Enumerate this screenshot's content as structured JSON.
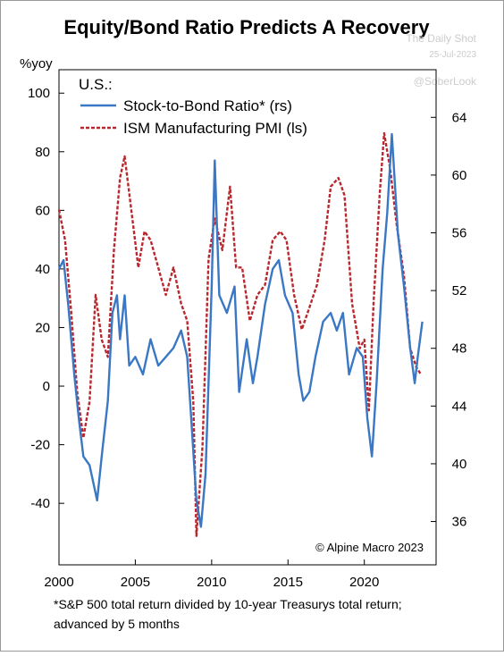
{
  "chart_data": {
    "type": "line",
    "title": "Equity/Bond Ratio Predicts A Recovery",
    "watermarks": [
      "The Daily Shot",
      "25-Jul-2023",
      "@SoberLook"
    ],
    "y_label": "%yoy",
    "legend_title": "U.S.:",
    "credit": "© Alpine Macro 2023",
    "footnote": [
      "*S&P 500 total return divided by 10-year Treasurys total return;",
      "advanced by 5 months"
    ],
    "xlim": [
      2000,
      2024.7
    ],
    "xticks": [
      2000,
      2005,
      2010,
      2015,
      2020
    ],
    "ylim": [
      -61,
      108
    ],
    "yticks": [
      -40,
      -20,
      0,
      20,
      40,
      60,
      80,
      100
    ],
    "y2lim": [
      33,
      67.3
    ],
    "y2ticks": [
      36,
      40,
      44,
      48,
      52,
      56,
      60,
      64
    ],
    "series": [
      {
        "name": "Stock-to-Bond Ratio* (rs)",
        "color": "#3a77c4",
        "dash": false,
        "x": [
          2000,
          2000.3,
          2000.6,
          2001,
          2001.3,
          2001.6,
          2002,
          2002.5,
          2002.8,
          2003.2,
          2003.5,
          2003.8,
          2004,
          2004.3,
          2004.6,
          2005,
          2005.5,
          2006,
          2006.5,
          2007,
          2007.5,
          2008,
          2008.4,
          2008.7,
          2009,
          2009.3,
          2009.6,
          2010,
          2010.2,
          2010.5,
          2011,
          2011.5,
          2011.8,
          2012.3,
          2012.7,
          2013,
          2013.5,
          2014,
          2014.4,
          2014.8,
          2015.3,
          2015.7,
          2016,
          2016.4,
          2016.8,
          2017.3,
          2017.8,
          2018.2,
          2018.6,
          2019,
          2019.5,
          2019.9,
          2020.2,
          2020.5,
          2020.8,
          2021.2,
          2021.5,
          2021.8,
          2022.2,
          2022.6,
          2023,
          2023.3,
          2023.5,
          2023.8
        ],
        "values": [
          40,
          43,
          28,
          4,
          -11,
          -24,
          -27,
          -39,
          -24,
          -5,
          25,
          31,
          16,
          31,
          7,
          10,
          4,
          16,
          7,
          10,
          13,
          19,
          10,
          -14,
          -39,
          -48,
          -30,
          34,
          77,
          31,
          25,
          34,
          -2,
          16,
          1,
          10,
          28,
          40,
          43,
          31,
          25,
          4,
          -5,
          -2,
          10,
          22,
          25,
          19,
          25,
          4,
          13,
          10,
          -11,
          -24,
          1,
          40,
          59,
          86,
          52,
          34,
          13,
          1,
          10,
          22
        ]
      },
      {
        "name": "ISM Manufacturing PMI (ls)",
        "color": "#b8282e",
        "dash": true,
        "axis": "y2",
        "x": [
          2000,
          2000.4,
          2000.8,
          2001.2,
          2001.6,
          2002,
          2002.4,
          2002.8,
          2003.2,
          2003.6,
          2004,
          2004.3,
          2004.7,
          2005.2,
          2005.6,
          2006,
          2006.5,
          2007,
          2007.5,
          2008,
          2008.4,
          2008.8,
          2009,
          2009.4,
          2009.8,
          2010.2,
          2010.7,
          2011.2,
          2011.6,
          2012,
          2012.5,
          2013,
          2013.5,
          2014,
          2014.5,
          2014.9,
          2015.4,
          2015.9,
          2016.3,
          2016.9,
          2017.4,
          2017.8,
          2018.3,
          2018.7,
          2019.2,
          2019.7,
          2020,
          2020.3,
          2020.6,
          2021,
          2021.3,
          2021.7,
          2022.1,
          2022.6,
          2023,
          2023.4,
          2023.7
        ],
        "values": [
          57.6,
          55.5,
          50.5,
          44.9,
          41.8,
          44.3,
          51.7,
          48.6,
          47.4,
          54.8,
          59.8,
          61.3,
          57.9,
          53.6,
          56.1,
          55.5,
          53.6,
          51.7,
          53.6,
          51.1,
          49.9,
          44.3,
          35.0,
          41.2,
          54.2,
          57.0,
          54.8,
          59.2,
          53.6,
          53.6,
          49.9,
          51.7,
          52.4,
          55.5,
          56.1,
          55.5,
          51.7,
          49.3,
          50.5,
          52.4,
          55.5,
          59.2,
          59.8,
          58.6,
          51.1,
          48.0,
          48.6,
          43.7,
          51.1,
          58.6,
          62.9,
          60.4,
          56.7,
          53.0,
          48.0,
          46.7,
          46.2
        ]
      }
    ]
  }
}
